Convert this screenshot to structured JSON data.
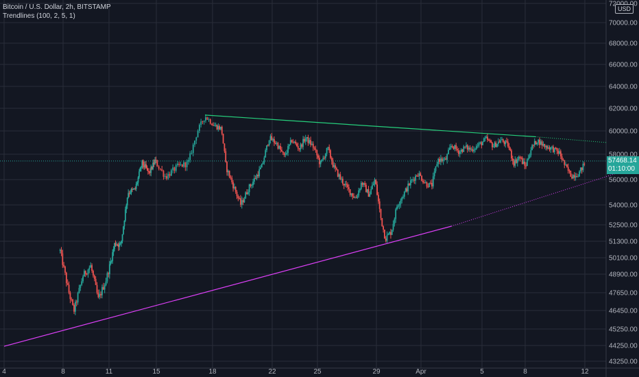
{
  "header": {
    "title": "Bitcoin / U.S. Dollar, 2h, BITSTAMP",
    "indicator": "Trendlines (100, 2, 5, 1)"
  },
  "currency_badge": "USD",
  "last_price": {
    "value": "57468.14",
    "countdown": "01:10:00",
    "color": "#26a69a"
  },
  "colors": {
    "background": "#131722",
    "grid": "#2a2e39",
    "up": "#26a69a",
    "down": "#ef5350",
    "resistance": "#26d07c",
    "support": "#e040fb"
  },
  "chart_data": {
    "type": "candlestick",
    "title": "Bitcoin / U.S. Dollar, 2h, BITSTAMP",
    "y_ticks": [
      "72000.00",
      "70000.00",
      "68000.00",
      "66000.00",
      "64000.00",
      "62000.00",
      "60000.00",
      "58000.00",
      "56000.00",
      "54000.00",
      "52500.00",
      "51300.00",
      "50100.00",
      "48900.00",
      "47650.00",
      "46450.00",
      "45250.00",
      "44250.00",
      "43250.00"
    ],
    "x_ticks": [
      "4",
      "8",
      "11",
      "15",
      "18",
      "22",
      "25",
      "29",
      "Apr",
      "5",
      "8",
      "12"
    ],
    "ylim": [
      43250,
      72000
    ],
    "price_path": [
      [
        3.8,
        50600
      ],
      [
        4.3,
        48000
      ],
      [
        4.7,
        46400
      ],
      [
        5.3,
        48800
      ],
      [
        5.8,
        49500
      ],
      [
        6.3,
        47200
      ],
      [
        6.8,
        48500
      ],
      [
        7.5,
        51200
      ],
      [
        8.0,
        51000
      ],
      [
        8.6,
        55000
      ],
      [
        9.2,
        55200
      ],
      [
        9.8,
        57300
      ],
      [
        10.4,
        56500
      ],
      [
        10.9,
        57500
      ],
      [
        11.5,
        56200
      ],
      [
        12.1,
        57000
      ],
      [
        12.7,
        57300
      ],
      [
        13.2,
        60000
      ],
      [
        13.6,
        61300
      ],
      [
        14.1,
        60500
      ],
      [
        14.6,
        60200
      ],
      [
        14.9,
        57000
      ],
      [
        15.4,
        55500
      ],
      [
        15.9,
        54000
      ],
      [
        16.4,
        55300
      ],
      [
        16.8,
        56000
      ],
      [
        17.3,
        57000
      ],
      [
        17.8,
        59400
      ],
      [
        18.3,
        58900
      ],
      [
        18.8,
        57800
      ],
      [
        19.3,
        59200
      ],
      [
        19.8,
        58500
      ],
      [
        20.2,
        59400
      ],
      [
        20.7,
        58700
      ],
      [
        21.2,
        57200
      ],
      [
        21.7,
        58500
      ],
      [
        22.1,
        57000
      ],
      [
        22.6,
        56000
      ],
      [
        23.1,
        55200
      ],
      [
        23.6,
        54500
      ],
      [
        24.0,
        55800
      ],
      [
        24.5,
        54800
      ],
      [
        24.9,
        56000
      ],
      [
        25.3,
        53000
      ],
      [
        25.6,
        51500
      ],
      [
        26.0,
        52000
      ],
      [
        26.4,
        54000
      ],
      [
        26.9,
        55000
      ],
      [
        27.3,
        55800
      ],
      [
        27.8,
        56500
      ],
      [
        28.3,
        55700
      ],
      [
        28.7,
        55500
      ],
      [
        29.1,
        57600
      ],
      [
        29.6,
        57500
      ],
      [
        30.0,
        58800
      ],
      [
        30.5,
        58200
      ],
      [
        30.9,
        58600
      ],
      [
        31.3,
        58400
      ],
      [
        31.8,
        58800
      ],
      [
        32.3,
        59300
      ],
      [
        32.8,
        58700
      ],
      [
        33.3,
        59200
      ],
      [
        33.8,
        58800
      ],
      [
        34.2,
        57300
      ],
      [
        34.6,
        57800
      ],
      [
        35.0,
        57000
      ],
      [
        35.4,
        58500
      ],
      [
        35.8,
        59200
      ],
      [
        36.3,
        58700
      ],
      [
        36.8,
        58500
      ],
      [
        37.3,
        58100
      ],
      [
        37.7,
        57000
      ],
      [
        38.1,
        56300
      ],
      [
        38.6,
        56500
      ],
      [
        39.0,
        57300
      ]
    ],
    "resistance_line": [
      [
        13.6,
        61400
      ],
      [
        35.7,
        59500
      ]
    ],
    "resistance_extension": [
      [
        35.7,
        59500
      ],
      [
        40.5,
        59000
      ]
    ],
    "support_line": [
      [
        0,
        44200
      ],
      [
        30.0,
        52400
      ]
    ],
    "support_extension": [
      [
        30.0,
        52400
      ],
      [
        42.5,
        57000
      ]
    ]
  }
}
